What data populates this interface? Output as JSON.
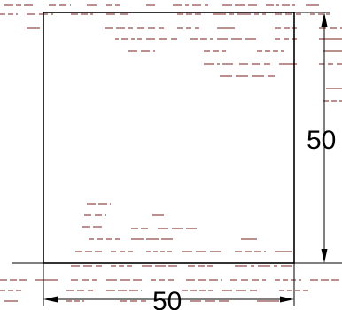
{
  "drawing": {
    "shape": "square",
    "dimensions": {
      "horizontal": "50",
      "vertical": "50"
    }
  },
  "colors": {
    "outline": "#000000",
    "hatch": "#7a1f1f",
    "background": "#ffffff"
  }
}
